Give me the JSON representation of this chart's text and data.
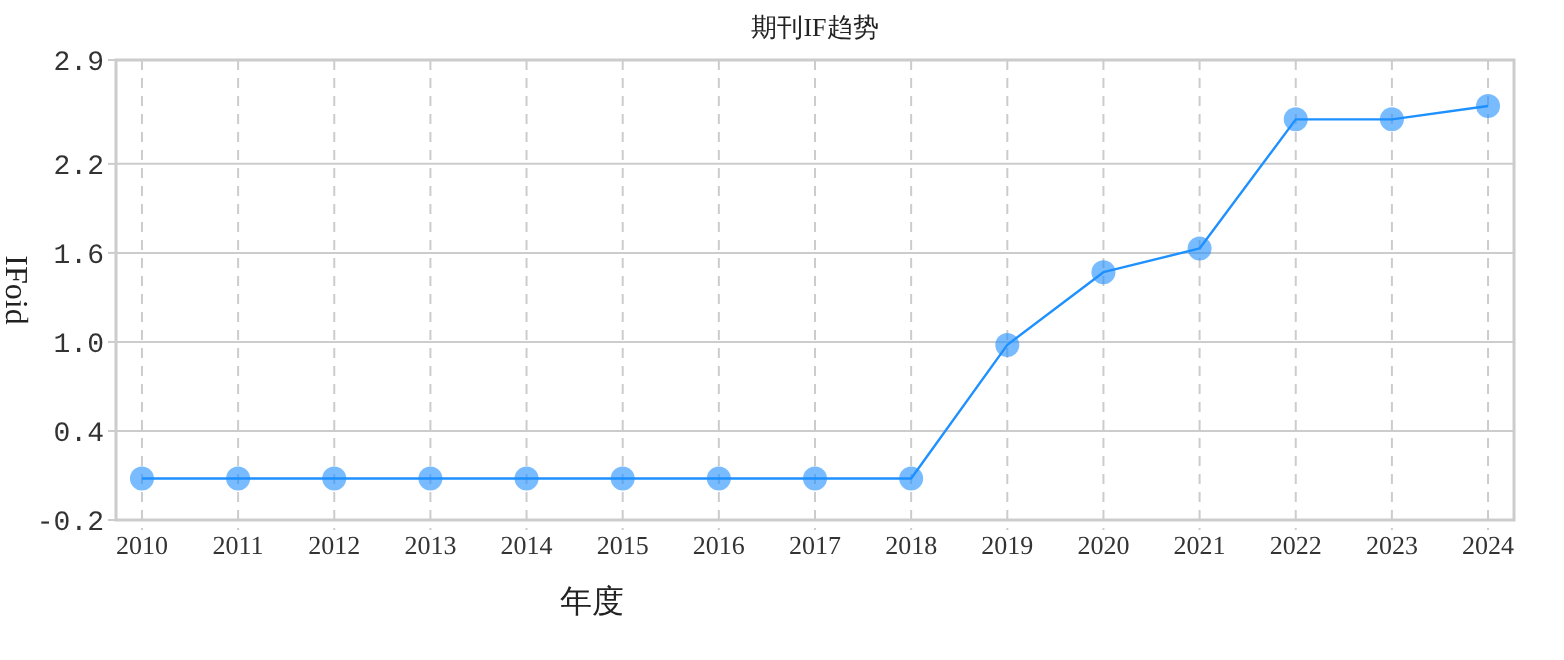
{
  "chart_data": {
    "type": "line",
    "title": "期刊IF趋势",
    "xlabel": "年度",
    "ylabel": "IFoid",
    "categories": [
      "2010",
      "2011",
      "2012",
      "2013",
      "2014",
      "2015",
      "2016",
      "2017",
      "2018",
      "2019",
      "2020",
      "2021",
      "2022",
      "2023",
      "2024"
    ],
    "series": [
      {
        "color": "#1e90ff",
        "values": [
          0.08,
          0.08,
          0.08,
          0.08,
          0.08,
          0.08,
          0.08,
          0.08,
          0.08,
          0.98,
          1.47,
          1.63,
          2.5,
          2.5,
          2.59
        ]
      }
    ],
    "ylim": [
      -0.2,
      2.9
    ],
    "yticks": [
      -0.2,
      0.4,
      {
        "value": 1.0,
        "label": "1.0"
      },
      1.6,
      2.2,
      2.9
    ],
    "grid": true,
    "marker": "circle",
    "line_style": "solid"
  }
}
